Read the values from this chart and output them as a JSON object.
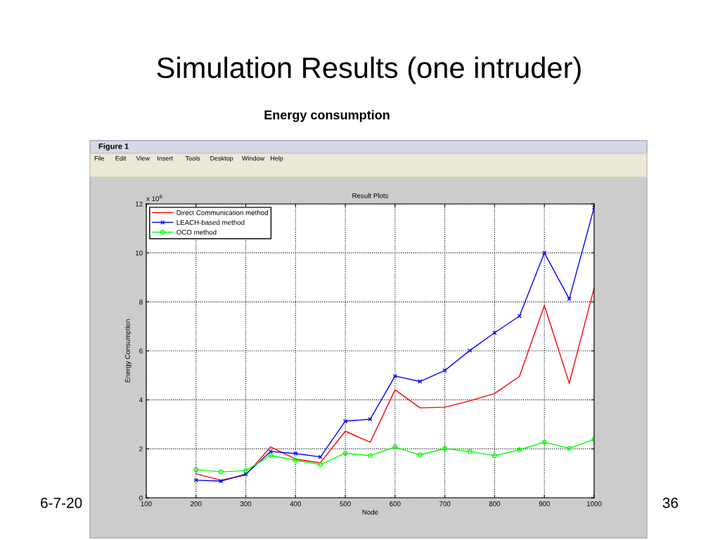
{
  "chart_data": {
    "type": "line",
    "title": "Result Plots",
    "xlabel": "Node",
    "ylabel": "Energy Consumption",
    "annotations": [
      "x 10$^{8}$",
      "Simulation Results (one intruder)",
      "Energy consumption",
      "6-7-20",
      "36",
      "Figure 1",
      "File",
      "Edit",
      "View",
      "Insert",
      "Tools",
      "Desktop",
      "Window",
      "Help"
    ],
    "x": [
      200,
      250,
      300,
      350,
      400,
      450,
      500,
      550,
      600,
      650,
      700,
      750,
      800,
      850,
      900,
      950,
      1000
    ],
    "series": [
      {
        "name": "Direct Communication method",
        "color": "#ff0000",
        "marker": "none",
        "values": [
          0.98,
          0.72,
          0.93,
          2.08,
          1.58,
          1.43,
          2.72,
          2.27,
          4.41,
          3.67,
          3.7,
          3.96,
          4.26,
          4.96,
          7.85,
          4.68,
          8.57
        ]
      },
      {
        "name": "LEACH-based method",
        "color": "#0000ff",
        "marker": "cross",
        "values": [
          0.72,
          0.68,
          0.97,
          1.89,
          1.81,
          1.67,
          3.13,
          3.21,
          4.97,
          4.75,
          5.2,
          6.01,
          6.74,
          7.42,
          10.0,
          8.12,
          11.86
        ]
      },
      {
        "name": "OCO method",
        "color": "#00ff00",
        "marker": "circle",
        "values": [
          1.15,
          1.06,
          1.11,
          1.73,
          1.53,
          1.36,
          1.82,
          1.72,
          2.08,
          1.75,
          2.01,
          1.89,
          1.72,
          1.96,
          2.27,
          2.02,
          2.39
        ]
      }
    ],
    "xlim": [
      100,
      1000
    ],
    "xticks": [
      100,
      200,
      300,
      400,
      500,
      600,
      700,
      800,
      900,
      1000
    ],
    "ylim": [
      0,
      12
    ],
    "yticks": [
      0,
      2,
      4,
      6,
      8,
      10,
      12
    ],
    "grid": true,
    "legend": "top left",
    "line_style": "solid"
  }
}
